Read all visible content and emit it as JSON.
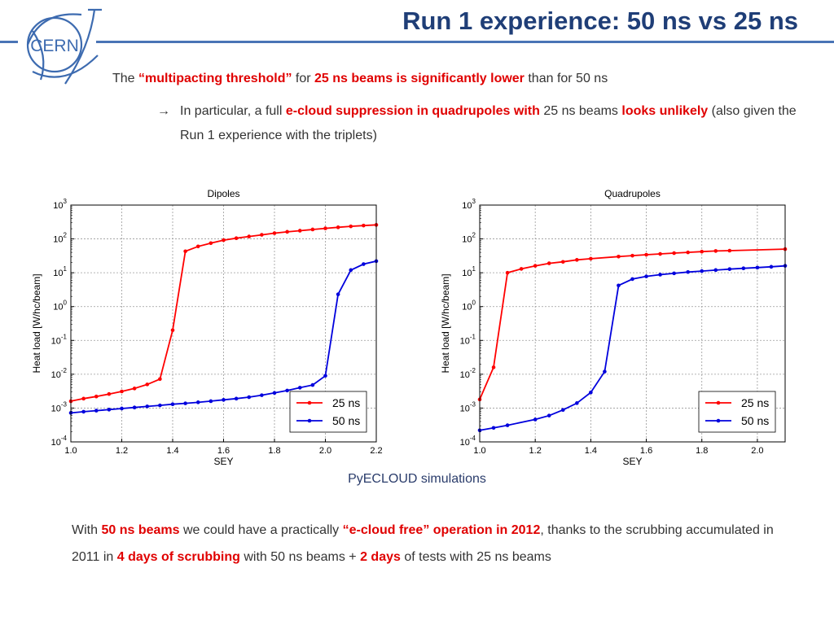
{
  "slide": {
    "title": "Run 1 experience: 50 ns vs 25 ns",
    "logo_text": "CERN",
    "line1": {
      "a": "The ",
      "b": "“multipacting threshold”",
      "c": " for ",
      "d": "25 ns beams is significantly lower",
      "e": " than for 50 ns"
    },
    "line2": {
      "arrow": "→",
      "a": "In particular, a full ",
      "b": "e-cloud suppression in quadrupoles with",
      "c": " 25 ns beams ",
      "d": "looks unlikely",
      "e": " (also given the Run 1 experience with the triplets)"
    },
    "caption": "PyECLOUD simulations",
    "bottom": {
      "a": "With ",
      "b": "50 ns beams",
      "c": " we could have a practically ",
      "d": "“e-cloud free” operation in 2012",
      "e": ", thanks to the scrubbing accumulated in 2011 in ",
      "f": "4 days of scrubbing",
      "g": " with 50 ns beams + ",
      "h": "2 days",
      "i": " of tests with 25 ns beams"
    }
  },
  "colors": {
    "title": "#1f3e77",
    "rule": "#4a74b6",
    "emphasis": "#e00000",
    "series_25ns": "#ff0000",
    "series_50ns": "#0000dd"
  },
  "chart_data": [
    {
      "type": "line",
      "title": "Dipoles",
      "xlabel": "SEY",
      "ylabel": "Heat load [W/hc/beam]",
      "xlim": [
        1.0,
        2.2
      ],
      "ylim": [
        0.0001,
        1000
      ],
      "yscale": "log",
      "grid": true,
      "legend": "lower-right",
      "xticks": [
        "1.0",
        "1.2",
        "1.4",
        "1.6",
        "1.8",
        "2.0",
        "2.2"
      ],
      "yticks": [
        {
          "base": "10",
          "exp": "-4"
        },
        {
          "base": "10",
          "exp": "-3"
        },
        {
          "base": "10",
          "exp": "-2"
        },
        {
          "base": "10",
          "exp": "-1"
        },
        {
          "base": "10",
          "exp": "0"
        },
        {
          "base": "10",
          "exp": "1"
        },
        {
          "base": "10",
          "exp": "2"
        },
        {
          "base": "10",
          "exp": "3"
        }
      ],
      "series": [
        {
          "name": "25 ns",
          "x": [
            1.0,
            1.05,
            1.1,
            1.15,
            1.2,
            1.25,
            1.3,
            1.35,
            1.4,
            1.45,
            1.5,
            1.55,
            1.6,
            1.65,
            1.7,
            1.75,
            1.8,
            1.85,
            1.9,
            1.95,
            2.0,
            2.05,
            2.1,
            2.15,
            2.2
          ],
          "y": [
            0.0016,
            0.0019,
            0.0022,
            0.0026,
            0.0031,
            0.0038,
            0.005,
            0.0072,
            0.2,
            43,
            60,
            75,
            92,
            105,
            118,
            132,
            148,
            162,
            175,
            190,
            205,
            220,
            235,
            248,
            260
          ]
        },
        {
          "name": "50 ns",
          "x": [
            1.0,
            1.05,
            1.1,
            1.15,
            1.2,
            1.25,
            1.3,
            1.35,
            1.4,
            1.45,
            1.5,
            1.55,
            1.6,
            1.65,
            1.7,
            1.75,
            1.8,
            1.85,
            1.9,
            1.95,
            2.0,
            2.05,
            2.1,
            2.15,
            2.2
          ],
          "y": [
            0.00072,
            0.00078,
            0.00084,
            0.0009,
            0.00097,
            0.00104,
            0.00112,
            0.0012,
            0.0013,
            0.00138,
            0.00148,
            0.0016,
            0.00175,
            0.0019,
            0.0021,
            0.0024,
            0.0028,
            0.0033,
            0.004,
            0.0048,
            0.009,
            2.3,
            12,
            18,
            22
          ]
        }
      ]
    },
    {
      "type": "line",
      "title": "Quadrupoles",
      "xlabel": "SEY",
      "ylabel": "Heat load [W/hc/beam]",
      "xlim": [
        1.0,
        2.1
      ],
      "ylim": [
        0.0001,
        1000
      ],
      "yscale": "log",
      "grid": true,
      "legend": "lower-right",
      "xticks": [
        "1.0",
        "1.2",
        "1.4",
        "1.6",
        "1.8",
        "2.0"
      ],
      "yticks": [
        {
          "base": "10",
          "exp": "-4"
        },
        {
          "base": "10",
          "exp": "-3"
        },
        {
          "base": "10",
          "exp": "-2"
        },
        {
          "base": "10",
          "exp": "-1"
        },
        {
          "base": "10",
          "exp": "0"
        },
        {
          "base": "10",
          "exp": "1"
        },
        {
          "base": "10",
          "exp": "2"
        },
        {
          "base": "10",
          "exp": "3"
        }
      ],
      "series": [
        {
          "name": "25 ns",
          "x": [
            1.0,
            1.05,
            1.1,
            1.15,
            1.2,
            1.25,
            1.3,
            1.35,
            1.4,
            1.5,
            1.55,
            1.6,
            1.65,
            1.7,
            1.75,
            1.8,
            1.85,
            1.9,
            2.1
          ],
          "y": [
            0.0018,
            0.016,
            10,
            13,
            16,
            19,
            21,
            24,
            26,
            30,
            32,
            34,
            36,
            38,
            40,
            42,
            44,
            45,
            50
          ]
        },
        {
          "name": "50 ns",
          "x": [
            1.0,
            1.05,
            1.1,
            1.2,
            1.25,
            1.3,
            1.35,
            1.4,
            1.45,
            1.5,
            1.55,
            1.6,
            1.65,
            1.7,
            1.75,
            1.8,
            1.85,
            1.9,
            1.95,
            2.0,
            2.05,
            2.1
          ],
          "y": [
            0.00022,
            0.00026,
            0.00031,
            0.00046,
            0.0006,
            0.00088,
            0.0014,
            0.0029,
            0.012,
            4.2,
            6.5,
            7.8,
            8.8,
            9.6,
            10.5,
            11.2,
            12,
            12.8,
            13.5,
            14.2,
            15,
            16
          ]
        }
      ]
    }
  ]
}
